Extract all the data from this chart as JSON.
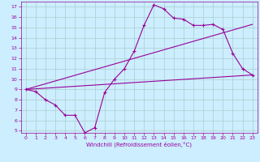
{
  "xlabel": "Windchill (Refroidissement éolien,°C)",
  "xlim": [
    -0.5,
    23.5
  ],
  "ylim": [
    4.8,
    17.5
  ],
  "yticks": [
    5,
    6,
    7,
    8,
    9,
    10,
    11,
    12,
    13,
    14,
    15,
    16,
    17
  ],
  "xticks": [
    0,
    1,
    2,
    3,
    4,
    5,
    6,
    7,
    8,
    9,
    10,
    11,
    12,
    13,
    14,
    15,
    16,
    17,
    18,
    19,
    20,
    21,
    22,
    23
  ],
  "line_color": "#990099",
  "bg_color": "#cceeff",
  "grid_color": "#aacccc",
  "line_main": {
    "x": [
      0,
      1,
      2,
      3,
      4,
      5,
      6,
      7,
      8,
      9,
      10,
      11,
      12,
      13,
      14,
      15,
      16,
      17,
      18,
      19,
      20,
      21,
      22,
      23
    ],
    "y": [
      9.0,
      8.8,
      8.0,
      7.5,
      6.5,
      6.5,
      4.8,
      5.3,
      8.7,
      10.0,
      11.0,
      12.7,
      15.2,
      17.2,
      16.8,
      15.9,
      15.8,
      15.2,
      15.2,
      15.3,
      14.8,
      12.5,
      11.0,
      10.4
    ]
  },
  "line_upper": {
    "x": [
      0,
      23
    ],
    "y": [
      9.0,
      15.3
    ]
  },
  "line_lower": {
    "x": [
      0,
      23
    ],
    "y": [
      9.0,
      10.4
    ]
  }
}
